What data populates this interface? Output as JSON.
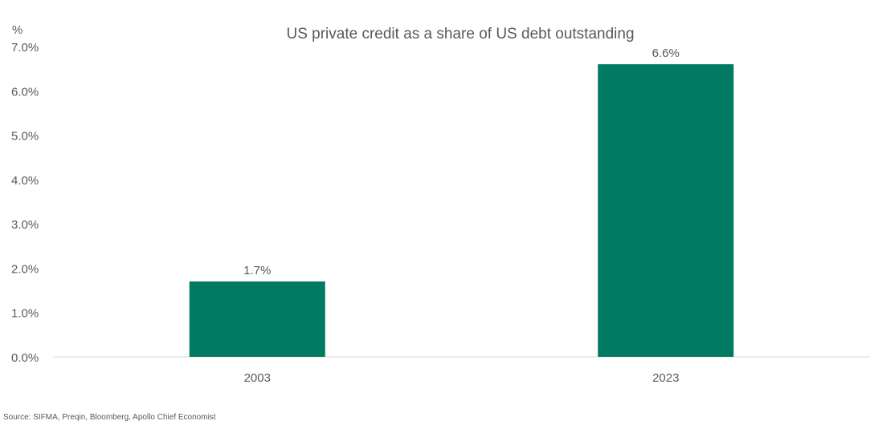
{
  "chart_data": {
    "type": "bar",
    "title": "US private credit as a share of US debt outstanding",
    "unit_label": "%",
    "categories": [
      "2003",
      "2023"
    ],
    "values": [
      1.7,
      6.6
    ],
    "data_labels": [
      "1.7%",
      "6.6%"
    ],
    "ylim": [
      0,
      7
    ],
    "yticks": [
      0,
      1,
      2,
      3,
      4,
      5,
      6,
      7
    ],
    "ytick_labels": [
      "0.0%",
      "1.0%",
      "2.0%",
      "3.0%",
      "4.0%",
      "5.0%",
      "6.0%",
      "7.0%"
    ],
    "xlabel": "",
    "ylabel": "",
    "grid": false,
    "legend": "none",
    "bar_color": "#007A61",
    "source": "Source: SIFMA, Preqin, Bloomberg, Apollo Chief Economist"
  }
}
